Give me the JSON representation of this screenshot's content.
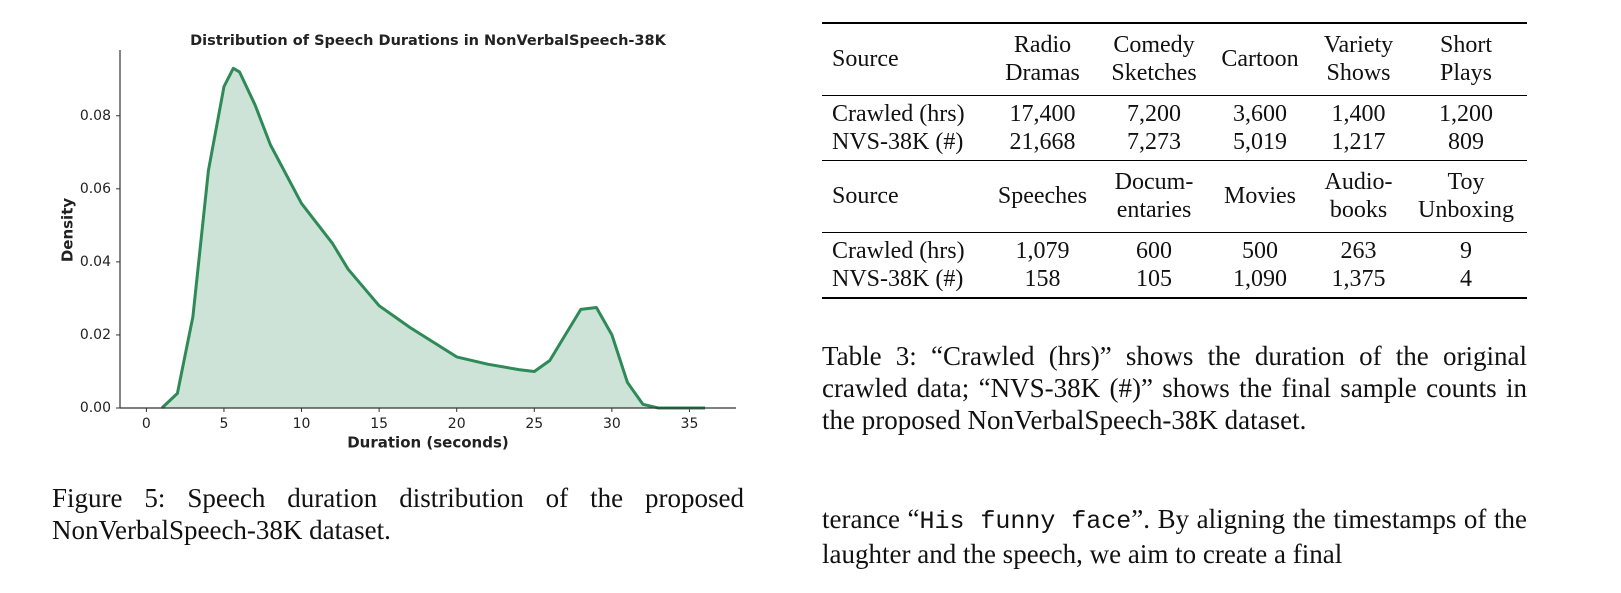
{
  "chart_data": {
    "type": "area",
    "title": "Distribution of Speech Durations in NonVerbalSpeech-38K",
    "x_label": "Duration (seconds)",
    "y_label": "Density",
    "x": [
      1,
      2,
      3,
      4,
      5,
      5.6,
      6,
      7,
      8,
      9,
      10,
      12,
      13,
      15,
      17,
      20,
      22,
      24,
      25,
      26,
      27,
      28,
      29,
      30,
      31,
      32,
      33,
      36
    ],
    "values": [
      0,
      0.004,
      0.025,
      0.065,
      0.088,
      0.093,
      0.092,
      0.083,
      0.072,
      0.064,
      0.056,
      0.045,
      0.038,
      0.028,
      0.022,
      0.014,
      0.012,
      0.0105,
      0.01,
      0.013,
      0.02,
      0.027,
      0.0275,
      0.02,
      0.007,
      0.001,
      0,
      0
    ],
    "color": "#2e8b57",
    "xlim": [
      -1.7,
      38
    ],
    "ylim": [
      0,
      0.098
    ],
    "xticks": [
      0,
      5,
      10,
      15,
      20,
      25,
      30,
      35
    ],
    "yticks": [
      {
        "value": 0,
        "label": "0.00"
      },
      0.02,
      0.04,
      0.06,
      0.08
    ]
  },
  "figure_caption": "Figure 5: Speech duration distribution of the proposed NonVerbalSpeech-38K dataset.",
  "table": {
    "blocks": [
      {
        "header": [
          [
            "Source"
          ],
          [
            "Radio",
            "Dramas"
          ],
          [
            "Comedy",
            "Sketches"
          ],
          [
            "Cartoon"
          ],
          [
            "Variety",
            "Shows"
          ],
          [
            "Short",
            "Plays"
          ]
        ],
        "rows": [
          [
            "Crawled (hrs)",
            "17,400",
            "7,200",
            "3,600",
            "1,400",
            "1,200"
          ],
          [
            "NVS-38K (#)",
            "21,668",
            "7,273",
            "5,019",
            "1,217",
            "809"
          ]
        ]
      },
      {
        "header": [
          [
            "Source"
          ],
          [
            "Speeches"
          ],
          [
            "Docum-",
            "entaries"
          ],
          [
            "Movies"
          ],
          [
            "Audio-",
            "books"
          ],
          [
            "Toy",
            "Unboxing"
          ]
        ],
        "rows": [
          [
            "Crawled (hrs)",
            "1,079",
            "600",
            "500",
            "263",
            "9"
          ],
          [
            "NVS-38K (#)",
            "158",
            "105",
            "1,090",
            "1,375",
            "4"
          ]
        ]
      }
    ]
  },
  "table_caption": "Table 3: “Crawled (hrs)” shows the duration of the original crawled data; “NVS-38K (#)” shows the final sample counts in the proposed NonVerbalSpeech-38K dataset.",
  "body_text": [
    "terance “",
    "His funny face",
    "”. By aligning the timestamps of the laughter and the speech, we aim to create a final"
  ]
}
